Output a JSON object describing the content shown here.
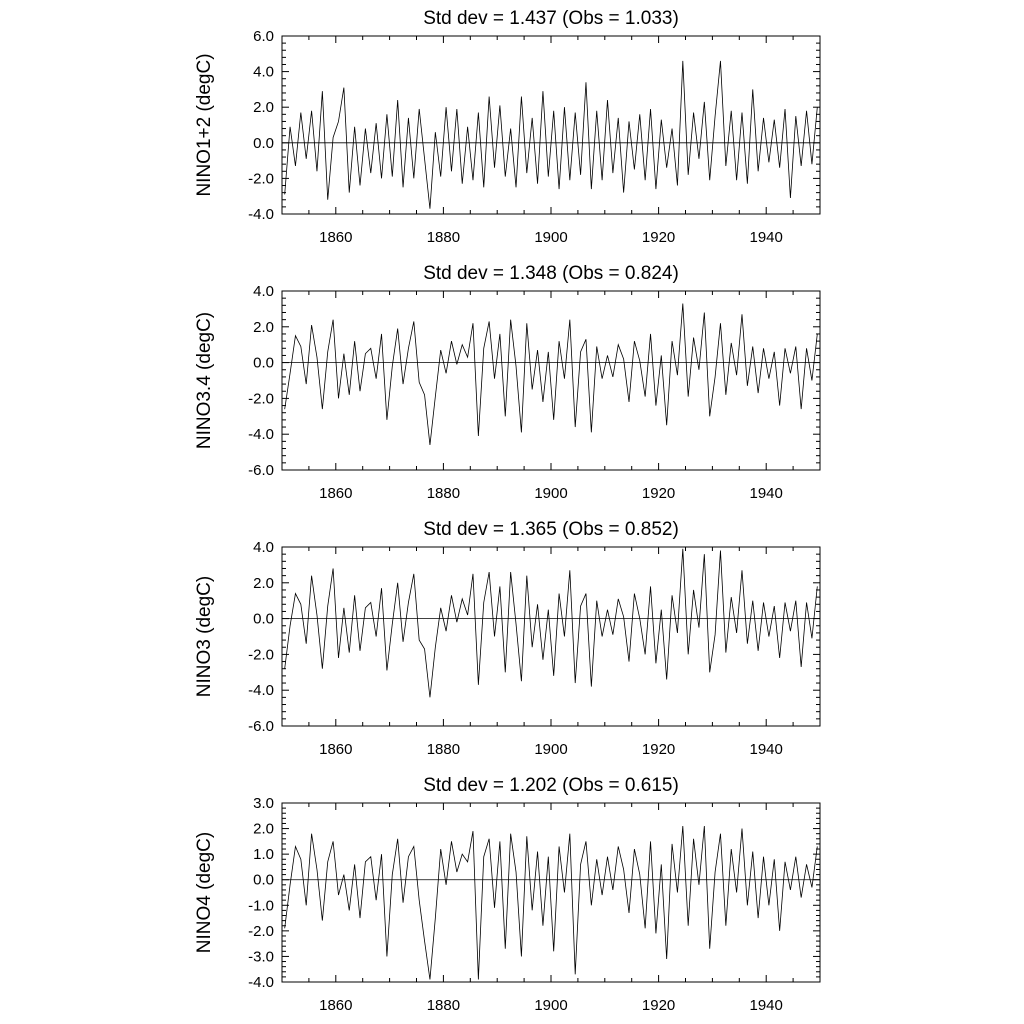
{
  "chart_data": [
    {
      "type": "line",
      "title": "Std dev = 1.437 (Obs = 1.033)",
      "ylabel": "NINO1+2 (degC)",
      "xlabel": "",
      "xlim": [
        1850,
        1950
      ],
      "ylim": [
        -4.0,
        6.0
      ],
      "xticks": [
        1860,
        1880,
        1900,
        1920,
        1940
      ],
      "yticks": [
        "-4.0",
        "-2.0",
        "0.0",
        "2.0",
        "4.0",
        "6.0"
      ],
      "grid": false,
      "zero_line": true,
      "series": [
        {
          "x": [
            1850.5,
            1851.5,
            1852.5,
            1853.5,
            1854.5,
            1855.5,
            1856.5,
            1857.5,
            1858.5,
            1859.5,
            1860.5,
            1861.5,
            1862.5,
            1863.5,
            1864.5,
            1865.5,
            1866.5,
            1867.5,
            1868.5,
            1869.5,
            1870.5,
            1871.5,
            1872.5,
            1873.5,
            1874.5,
            1875.5,
            1876.5,
            1877.5,
            1878.5,
            1879.5,
            1880.5,
            1881.5,
            1882.5,
            1883.5,
            1884.5,
            1885.5,
            1886.5,
            1887.5,
            1888.5,
            1889.5,
            1890.5,
            1891.5,
            1892.5,
            1893.5,
            1894.5,
            1895.5,
            1896.5,
            1897.5,
            1898.5,
            1899.5,
            1900.5,
            1901.5,
            1902.5,
            1903.5,
            1904.5,
            1905.5,
            1906.5,
            1907.5,
            1908.5,
            1909.5,
            1910.5,
            1911.5,
            1912.5,
            1913.5,
            1914.5,
            1915.5,
            1916.5,
            1917.5,
            1918.5,
            1919.5,
            1920.5,
            1921.5,
            1922.5,
            1923.5,
            1924.5,
            1925.5,
            1926.5,
            1927.5,
            1928.5,
            1929.5,
            1930.5,
            1931.5,
            1932.5,
            1933.5,
            1934.5,
            1935.5,
            1936.5,
            1937.5,
            1938.5,
            1939.5,
            1940.5,
            1941.5,
            1942.5,
            1943.5,
            1944.5,
            1945.5,
            1946.5,
            1947.5,
            1948.5,
            1949.5
          ],
          "y": [
            -2.9,
            0.9,
            -1.3,
            1.7,
            -0.9,
            1.8,
            -1.6,
            2.9,
            -3.2,
            0.3,
            1.2,
            3.1,
            -2.8,
            0.9,
            -2.4,
            0.8,
            -1.7,
            1.1,
            -2.0,
            1.6,
            -1.9,
            2.4,
            -2.5,
            1.4,
            -2.0,
            1.9,
            -0.9,
            -3.7,
            0.6,
            -1.9,
            2.0,
            -1.6,
            1.9,
            -2.3,
            0.9,
            -2.1,
            1.7,
            -2.5,
            2.6,
            -1.4,
            2.1,
            -1.9,
            0.8,
            -2.5,
            2.6,
            -1.7,
            1.4,
            -2.3,
            2.9,
            -1.9,
            1.8,
            -2.6,
            2.0,
            -2.1,
            1.7,
            -1.8,
            3.4,
            -2.6,
            1.8,
            -2.1,
            2.4,
            -1.7,
            1.4,
            -2.8,
            1.2,
            -1.5,
            1.6,
            -2.1,
            1.9,
            -2.6,
            1.3,
            -1.4,
            0.8,
            -2.4,
            4.6,
            -1.8,
            1.7,
            -0.9,
            2.3,
            -2.1,
            1.5,
            4.6,
            -1.3,
            1.8,
            -2.1,
            1.7,
            -2.3,
            3.0,
            -1.6,
            1.4,
            -1.1,
            1.3,
            -1.4,
            1.9,
            -3.1,
            1.5,
            -1.3,
            1.8,
            -1.2,
            2.0
          ]
        }
      ]
    },
    {
      "type": "line",
      "title": "Std dev = 1.348 (Obs = 0.824)",
      "ylabel": "NINO3.4 (degC)",
      "xlabel": "",
      "xlim": [
        1850,
        1950
      ],
      "ylim": [
        -6.0,
        4.0
      ],
      "xticks": [
        1860,
        1880,
        1900,
        1920,
        1940
      ],
      "yticks": [
        "-6.0",
        "-4.0",
        "-2.0",
        "0.0",
        "2.0",
        "4.0"
      ],
      "grid": false,
      "zero_line": true,
      "series": [
        {
          "x": [
            1850.5,
            1851.5,
            1852.5,
            1853.5,
            1854.5,
            1855.5,
            1856.5,
            1857.5,
            1858.5,
            1859.5,
            1860.5,
            1861.5,
            1862.5,
            1863.5,
            1864.5,
            1865.5,
            1866.5,
            1867.5,
            1868.5,
            1869.5,
            1870.5,
            1871.5,
            1872.5,
            1873.5,
            1874.5,
            1875.5,
            1876.5,
            1877.5,
            1878.5,
            1879.5,
            1880.5,
            1881.5,
            1882.5,
            1883.5,
            1884.5,
            1885.5,
            1886.5,
            1887.5,
            1888.5,
            1889.5,
            1890.5,
            1891.5,
            1892.5,
            1893.5,
            1894.5,
            1895.5,
            1896.5,
            1897.5,
            1898.5,
            1899.5,
            1900.5,
            1901.5,
            1902.5,
            1903.5,
            1904.5,
            1905.5,
            1906.5,
            1907.5,
            1908.5,
            1909.5,
            1910.5,
            1911.5,
            1912.5,
            1913.5,
            1914.5,
            1915.5,
            1916.5,
            1917.5,
            1918.5,
            1919.5,
            1920.5,
            1921.5,
            1922.5,
            1923.5,
            1924.5,
            1925.5,
            1926.5,
            1927.5,
            1928.5,
            1929.5,
            1930.5,
            1931.5,
            1932.5,
            1933.5,
            1934.5,
            1935.5,
            1936.5,
            1937.5,
            1938.5,
            1939.5,
            1940.5,
            1941.5,
            1942.5,
            1943.5,
            1944.5,
            1945.5,
            1946.5,
            1947.5,
            1948.5,
            1949.5
          ],
          "y": [
            -2.6,
            -0.6,
            1.5,
            0.9,
            -1.2,
            2.1,
            0.3,
            -2.6,
            0.6,
            2.4,
            -2.0,
            0.5,
            -1.8,
            1.2,
            -1.6,
            0.5,
            0.8,
            -0.9,
            1.6,
            -3.2,
            -0.2,
            1.9,
            -1.2,
            0.8,
            2.3,
            -1.1,
            -1.8,
            -4.6,
            -1.9,
            0.7,
            -0.6,
            1.2,
            -0.1,
            1.0,
            0.3,
            2.2,
            -4.1,
            0.8,
            2.3,
            -0.9,
            1.6,
            -3.0,
            2.4,
            -0.2,
            -3.9,
            2.2,
            -1.5,
            0.7,
            -2.2,
            0.6,
            -3.2,
            1.2,
            -0.9,
            2.4,
            -3.6,
            0.6,
            1.3,
            -3.9,
            0.9,
            -0.9,
            0.4,
            -0.8,
            1.0,
            0.2,
            -2.2,
            1.2,
            0.1,
            -1.9,
            1.6,
            -2.4,
            0.4,
            -3.5,
            1.2,
            -0.7,
            3.3,
            -1.9,
            1.4,
            -0.4,
            2.8,
            -3.0,
            -0.8,
            2.2,
            -1.8,
            1.1,
            -0.7,
            2.7,
            -1.3,
            0.9,
            -1.7,
            0.8,
            -0.9,
            0.6,
            -2.4,
            0.8,
            -0.6,
            0.9,
            -2.6,
            0.8,
            -1.0,
            1.6
          ]
        }
      ]
    },
    {
      "type": "line",
      "title": "Std dev = 1.365 (Obs = 0.852)",
      "ylabel": "NINO3 (degC)",
      "xlabel": "",
      "xlim": [
        1850,
        1950
      ],
      "ylim": [
        -6.0,
        4.0
      ],
      "xticks": [
        1860,
        1880,
        1900,
        1920,
        1940
      ],
      "yticks": [
        "-6.0",
        "-4.0",
        "-2.0",
        "0.0",
        "2.0",
        "4.0"
      ],
      "grid": false,
      "zero_line": true,
      "series": [
        {
          "x": [
            1850.5,
            1851.5,
            1852.5,
            1853.5,
            1854.5,
            1855.5,
            1856.5,
            1857.5,
            1858.5,
            1859.5,
            1860.5,
            1861.5,
            1862.5,
            1863.5,
            1864.5,
            1865.5,
            1866.5,
            1867.5,
            1868.5,
            1869.5,
            1870.5,
            1871.5,
            1872.5,
            1873.5,
            1874.5,
            1875.5,
            1876.5,
            1877.5,
            1878.5,
            1879.5,
            1880.5,
            1881.5,
            1882.5,
            1883.5,
            1884.5,
            1885.5,
            1886.5,
            1887.5,
            1888.5,
            1889.5,
            1890.5,
            1891.5,
            1892.5,
            1893.5,
            1894.5,
            1895.5,
            1896.5,
            1897.5,
            1898.5,
            1899.5,
            1900.5,
            1901.5,
            1902.5,
            1903.5,
            1904.5,
            1905.5,
            1906.5,
            1907.5,
            1908.5,
            1909.5,
            1910.5,
            1911.5,
            1912.5,
            1913.5,
            1914.5,
            1915.5,
            1916.5,
            1917.5,
            1918.5,
            1919.5,
            1920.5,
            1921.5,
            1922.5,
            1923.5,
            1924.5,
            1925.5,
            1926.5,
            1927.5,
            1928.5,
            1929.5,
            1930.5,
            1931.5,
            1932.5,
            1933.5,
            1934.5,
            1935.5,
            1936.5,
            1937.5,
            1938.5,
            1939.5,
            1940.5,
            1941.5,
            1942.5,
            1943.5,
            1944.5,
            1945.5,
            1946.5,
            1947.5,
            1948.5,
            1949.5
          ],
          "y": [
            -2.8,
            -0.4,
            1.4,
            0.8,
            -1.4,
            2.4,
            0.2,
            -2.8,
            0.7,
            2.8,
            -2.2,
            0.6,
            -1.9,
            1.3,
            -1.8,
            0.6,
            0.9,
            -1.0,
            1.7,
            -2.9,
            -0.3,
            2.0,
            -1.3,
            0.9,
            2.5,
            -1.2,
            -1.7,
            -4.4,
            -1.6,
            0.6,
            -0.7,
            1.3,
            -0.2,
            1.1,
            0.2,
            2.5,
            -3.7,
            0.9,
            2.6,
            -1.0,
            1.8,
            -3.0,
            2.6,
            -0.3,
            -3.5,
            2.4,
            -1.6,
            0.8,
            -2.3,
            0.5,
            -3.2,
            1.4,
            -1.0,
            2.7,
            -3.6,
            0.7,
            1.4,
            -3.8,
            1.0,
            -1.0,
            0.5,
            -0.9,
            1.1,
            0.1,
            -2.4,
            1.4,
            0.0,
            -2.0,
            1.8,
            -2.5,
            0.5,
            -3.4,
            1.3,
            -0.8,
            3.9,
            -2.0,
            1.6,
            -0.5,
            3.6,
            -3.0,
            -0.9,
            3.8,
            -1.9,
            1.2,
            -0.8,
            2.7,
            -1.4,
            1.0,
            -1.8,
            0.9,
            -1.0,
            0.7,
            -2.2,
            0.9,
            -0.7,
            1.0,
            -2.7,
            0.9,
            -1.1,
            1.8
          ]
        }
      ]
    },
    {
      "type": "line",
      "title": "Std dev = 1.202 (Obs = 0.615)",
      "ylabel": "NINO4 (degC)",
      "xlabel": "",
      "xlim": [
        1850,
        1950
      ],
      "ylim": [
        -4.0,
        3.0
      ],
      "xticks": [
        1860,
        1880,
        1900,
        1920,
        1940
      ],
      "yticks": [
        "-4.0",
        "-3.0",
        "-2.0",
        "-1.0",
        "0.0",
        "1.0",
        "2.0",
        "3.0"
      ],
      "grid": false,
      "zero_line": true,
      "series": [
        {
          "x": [
            1850.5,
            1851.5,
            1852.5,
            1853.5,
            1854.5,
            1855.5,
            1856.5,
            1857.5,
            1858.5,
            1859.5,
            1860.5,
            1861.5,
            1862.5,
            1863.5,
            1864.5,
            1865.5,
            1866.5,
            1867.5,
            1868.5,
            1869.5,
            1870.5,
            1871.5,
            1872.5,
            1873.5,
            1874.5,
            1875.5,
            1876.5,
            1877.5,
            1878.5,
            1879.5,
            1880.5,
            1881.5,
            1882.5,
            1883.5,
            1884.5,
            1885.5,
            1886.5,
            1887.5,
            1888.5,
            1889.5,
            1890.5,
            1891.5,
            1892.5,
            1893.5,
            1894.5,
            1895.5,
            1896.5,
            1897.5,
            1898.5,
            1899.5,
            1900.5,
            1901.5,
            1902.5,
            1903.5,
            1904.5,
            1905.5,
            1906.5,
            1907.5,
            1908.5,
            1909.5,
            1910.5,
            1911.5,
            1912.5,
            1913.5,
            1914.5,
            1915.5,
            1916.5,
            1917.5,
            1918.5,
            1919.5,
            1920.5,
            1921.5,
            1922.5,
            1923.5,
            1924.5,
            1925.5,
            1926.5,
            1927.5,
            1928.5,
            1929.5,
            1930.5,
            1931.5,
            1932.5,
            1933.5,
            1934.5,
            1935.5,
            1936.5,
            1937.5,
            1938.5,
            1939.5,
            1940.5,
            1941.5,
            1942.5,
            1943.5,
            1944.5,
            1945.5,
            1946.5,
            1947.5,
            1948.5,
            1949.5
          ],
          "y": [
            -1.9,
            -0.2,
            1.3,
            0.8,
            -1.0,
            1.8,
            0.4,
            -1.6,
            0.7,
            1.5,
            -0.6,
            0.2,
            -1.2,
            0.6,
            -1.5,
            0.7,
            0.9,
            -0.8,
            1.0,
            -3.0,
            0.2,
            1.6,
            -0.9,
            0.9,
            1.3,
            -0.8,
            -2.4,
            -3.9,
            -1.5,
            1.2,
            -0.2,
            1.5,
            0.3,
            1.0,
            0.7,
            1.9,
            -3.9,
            0.9,
            1.6,
            -1.1,
            1.5,
            -2.7,
            1.8,
            0.3,
            -3.0,
            1.7,
            -1.2,
            1.1,
            -1.8,
            0.9,
            -2.8,
            1.3,
            -0.5,
            1.8,
            -3.7,
            0.6,
            1.5,
            -1.0,
            0.8,
            -0.6,
            0.9,
            -0.4,
            1.3,
            0.4,
            -1.3,
            1.2,
            0.2,
            -1.9,
            1.5,
            -2.1,
            0.6,
            -3.1,
            1.4,
            -0.5,
            2.1,
            -1.8,
            1.6,
            -0.2,
            2.1,
            -2.7,
            0.3,
            1.8,
            -1.8,
            1.2,
            -0.5,
            2.0,
            -1.0,
            1.1,
            -1.5,
            0.9,
            -1.0,
            0.8,
            -2.0,
            0.7,
            -0.4,
            0.9,
            -0.7,
            0.6,
            -0.3,
            1.3
          ]
        }
      ]
    }
  ]
}
